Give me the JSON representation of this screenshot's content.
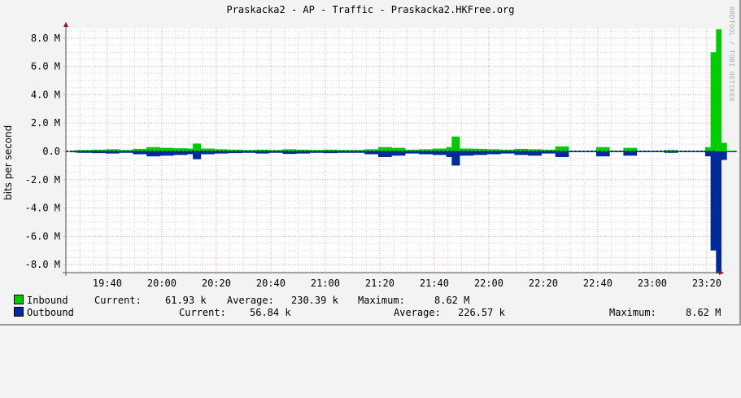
{
  "header": {
    "title": "Praskacka2 - AP - Traffic - Praskacka2.HKFree.org",
    "watermark": "RRDTOOL / TOBI OETIKER"
  },
  "axis": {
    "ylabel": "bits per second"
  },
  "legend": {
    "inbound": {
      "label": "Inbound",
      "color": "#00cc00",
      "current_label": "Current:",
      "current": "61.93 k",
      "average_label": "Average:",
      "average": "230.39 k",
      "maximum_label": "Maximum:",
      "maximum": "8.62 M"
    },
    "outbound": {
      "label": "Outbound",
      "color": "#002a97",
      "current_label": "Current:",
      "current": "56.84 k",
      "average_label": "Average:",
      "average": "226.57 k",
      "maximum_label": "Maximum:",
      "maximum": "8.62 M"
    }
  },
  "colors": {
    "inbound": "#00cc00",
    "outbound": "#002a97",
    "grid_major": "#e8a0a0",
    "grid_minor": "#cfcfcf",
    "axis": "#555555",
    "arrow": "#a01010",
    "plot_bg": "#ffffff",
    "canvas_bg": "#f3f3f3"
  },
  "chart_data": {
    "type": "area",
    "title": "Praskacka2 - AP - Traffic - Praskacka2.HKFree.org",
    "xlabel": "",
    "ylabel": "bits per second",
    "ylim": [
      -8.7,
      8.7
    ],
    "y_ticks": [
      "8.0 M",
      "6.0 M",
      "4.0 M",
      "2.0 M",
      "0.0",
      "-2.0 M",
      "-4.0 M",
      "-6.0 M",
      "-8.0 M"
    ],
    "y_tick_values": [
      8,
      6,
      4,
      2,
      0,
      -2,
      -4,
      -6,
      -8
    ],
    "x_ticks": [
      "19:40",
      "20:00",
      "20:20",
      "20:40",
      "21:00",
      "21:20",
      "21:40",
      "22:00",
      "22:20",
      "22:40",
      "23:00",
      "23:20"
    ],
    "grid": true,
    "legend_position": "bottom",
    "units": "Mbit/s (outbound plotted negative)",
    "x": [
      "19:30",
      "19:35",
      "19:40",
      "19:45",
      "19:50",
      "19:55",
      "20:00",
      "20:05",
      "20:10",
      "20:12",
      "20:15",
      "20:20",
      "20:25",
      "20:30",
      "20:35",
      "20:40",
      "20:45",
      "20:50",
      "20:55",
      "21:00",
      "21:05",
      "21:10",
      "21:15",
      "21:20",
      "21:25",
      "21:30",
      "21:35",
      "21:40",
      "21:45",
      "21:47",
      "21:50",
      "21:55",
      "22:00",
      "22:05",
      "22:10",
      "22:15",
      "22:20",
      "22:25",
      "22:30",
      "22:35",
      "22:40",
      "22:45",
      "22:50",
      "22:55",
      "23:00",
      "23:05",
      "23:10",
      "23:15",
      "23:20",
      "23:22",
      "23:24",
      "23:26",
      "23:28",
      "23:30"
    ],
    "series": [
      {
        "name": "Inbound",
        "color": "#00cc00",
        "values": [
          0.1,
          0.12,
          0.15,
          0.1,
          0.18,
          0.3,
          0.25,
          0.22,
          0.2,
          0.55,
          0.2,
          0.15,
          0.12,
          0.1,
          0.12,
          0.1,
          0.15,
          0.12,
          0.1,
          0.12,
          0.1,
          0.1,
          0.15,
          0.3,
          0.25,
          0.12,
          0.15,
          0.2,
          0.3,
          1.05,
          0.2,
          0.18,
          0.15,
          0.12,
          0.18,
          0.15,
          0.12,
          0.35,
          0.05,
          0.05,
          0.3,
          0.05,
          0.25,
          0.05,
          0.05,
          0.1,
          0.05,
          0.05,
          0.3,
          7.0,
          8.62,
          0.6,
          0.05,
          0.06
        ]
      },
      {
        "name": "Outbound",
        "color": "#002a97",
        "values": [
          -0.1,
          -0.12,
          -0.15,
          -0.1,
          -0.2,
          -0.35,
          -0.3,
          -0.25,
          -0.2,
          -0.55,
          -0.2,
          -0.15,
          -0.12,
          -0.1,
          -0.15,
          -0.1,
          -0.18,
          -0.15,
          -0.1,
          -0.12,
          -0.1,
          -0.1,
          -0.2,
          -0.4,
          -0.3,
          -0.15,
          -0.2,
          -0.25,
          -0.4,
          -1.0,
          -0.3,
          -0.25,
          -0.2,
          -0.15,
          -0.25,
          -0.3,
          -0.15,
          -0.4,
          -0.05,
          -0.05,
          -0.35,
          -0.05,
          -0.3,
          -0.05,
          -0.05,
          -0.1,
          -0.05,
          -0.05,
          -0.35,
          -7.0,
          -8.62,
          -0.6,
          -0.05,
          -0.06
        ]
      }
    ]
  }
}
